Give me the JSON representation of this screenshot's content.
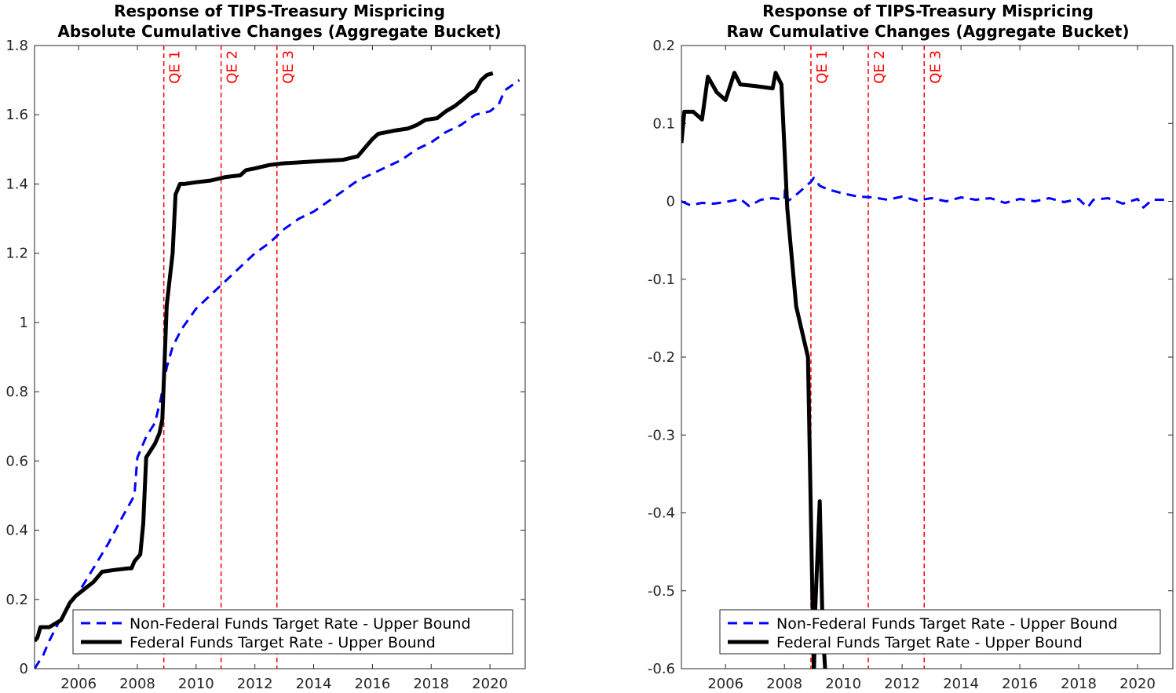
{
  "chart_data": [
    {
      "type": "line",
      "title": [
        "Response of TIPS-Treasury Mispricing",
        "Absolute Cumulative Changes (Aggregate Bucket)"
      ],
      "xlabel": "",
      "ylabel": "",
      "xlim": [
        2004.5,
        2021.2
      ],
      "ylim": [
        0,
        1.8
      ],
      "x_ticks": [
        2006,
        2008,
        2010,
        2012,
        2014,
        2016,
        2018,
        2020
      ],
      "y_ticks": [
        0,
        0.2,
        0.4,
        0.6,
        0.8,
        1,
        1.2,
        1.4,
        1.6,
        1.8
      ],
      "y_tick_labels": [
        "0",
        "0.2",
        "0.4",
        "0.6",
        "0.8",
        "1",
        "1.2",
        "1.4",
        "1.6",
        "1.8"
      ],
      "grid": false,
      "legend_position": "bottom-right",
      "events": [
        {
          "label": "QE 1",
          "x": 2008.9
        },
        {
          "label": "QE 2",
          "x": 2010.85
        },
        {
          "label": "QE 3",
          "x": 2012.75
        }
      ],
      "series": [
        {
          "name": "Non-Federal Funds Target Rate - Upper Bound",
          "color": "#0000ff",
          "style": "dashed",
          "x": [
            2004.5,
            2004.8,
            2005.0,
            2005.3,
            2005.6,
            2006.0,
            2006.5,
            2007.0,
            2007.5,
            2007.9,
            2008.0,
            2008.3,
            2008.6,
            2008.8,
            2009.0,
            2009.2,
            2009.5,
            2010.0,
            2010.5,
            2011.0,
            2011.5,
            2012.0,
            2012.5,
            2013.0,
            2013.5,
            2014.0,
            2014.5,
            2015.0,
            2015.5,
            2016.0,
            2016.5,
            2017.0,
            2017.5,
            2018.0,
            2018.5,
            2019.0,
            2019.5,
            2020.0,
            2020.3,
            2020.5,
            2021.0
          ],
          "values": [
            0.0,
            0.04,
            0.08,
            0.13,
            0.17,
            0.22,
            0.29,
            0.36,
            0.44,
            0.5,
            0.61,
            0.67,
            0.71,
            0.78,
            0.87,
            0.93,
            0.98,
            1.04,
            1.08,
            1.12,
            1.16,
            1.2,
            1.23,
            1.27,
            1.3,
            1.32,
            1.35,
            1.38,
            1.41,
            1.43,
            1.45,
            1.47,
            1.5,
            1.52,
            1.55,
            1.57,
            1.6,
            1.61,
            1.63,
            1.67,
            1.7
          ]
        },
        {
          "name": "Federal Funds Target Rate - Upper Bound",
          "color": "#000000",
          "style": "solid",
          "x": [
            2004.5,
            2004.6,
            2004.7,
            2005.0,
            2005.2,
            2005.4,
            2005.7,
            2005.9,
            2006.2,
            2006.5,
            2006.8,
            2007.2,
            2007.7,
            2007.8,
            2007.9,
            2008.0,
            2008.1,
            2008.2,
            2008.3,
            2008.6,
            2008.75,
            2008.85,
            2009.0,
            2009.2,
            2009.3,
            2009.45,
            2009.6,
            2010.0,
            2010.5,
            2011.0,
            2011.5,
            2011.7,
            2012.0,
            2012.5,
            2013.0,
            2014.0,
            2015.0,
            2015.5,
            2015.7,
            2016.0,
            2016.2,
            2016.5,
            2016.8,
            2017.2,
            2017.5,
            2017.8,
            2018.2,
            2018.5,
            2018.8,
            2019.1,
            2019.3,
            2019.5,
            2019.7,
            2019.9,
            2020.1
          ],
          "values": [
            0.08,
            0.09,
            0.12,
            0.12,
            0.13,
            0.14,
            0.19,
            0.21,
            0.23,
            0.25,
            0.28,
            0.285,
            0.29,
            0.29,
            0.31,
            0.32,
            0.33,
            0.42,
            0.61,
            0.65,
            0.68,
            0.72,
            1.05,
            1.2,
            1.37,
            1.4,
            1.4,
            1.405,
            1.41,
            1.42,
            1.425,
            1.44,
            1.445,
            1.455,
            1.46,
            1.465,
            1.47,
            1.48,
            1.5,
            1.53,
            1.545,
            1.55,
            1.555,
            1.56,
            1.57,
            1.585,
            1.59,
            1.61,
            1.625,
            1.645,
            1.66,
            1.67,
            1.7,
            1.715,
            1.72
          ]
        }
      ]
    },
    {
      "type": "line",
      "title": [
        "Response of TIPS-Treasury Mispricing",
        "Raw Cumulative Changes (Aggregate Bucket)"
      ],
      "xlabel": "",
      "ylabel": "",
      "xlim": [
        2004.5,
        2021.2
      ],
      "ylim": [
        -0.6,
        0.2
      ],
      "x_ticks": [
        2006,
        2008,
        2010,
        2012,
        2014,
        2016,
        2018,
        2020
      ],
      "y_ticks": [
        -0.6,
        -0.5,
        -0.4,
        -0.3,
        -0.2,
        -0.1,
        0,
        0.1,
        0.2
      ],
      "y_tick_labels": [
        "-0.6",
        "-0.5",
        "-0.4",
        "-0.3",
        "-0.2",
        "-0.1",
        "0",
        "0.1",
        "0.2"
      ],
      "grid": false,
      "legend_position": "bottom-right",
      "events": [
        {
          "label": "QE 1",
          "x": 2008.9
        },
        {
          "label": "QE 2",
          "x": 2010.85
        },
        {
          "label": "QE 3",
          "x": 2012.75
        }
      ],
      "series": [
        {
          "name": "Non-Federal Funds Target Rate - Upper Bound",
          "color": "#0000ff",
          "style": "dashed",
          "x": [
            2004.5,
            2004.8,
            2005.2,
            2005.6,
            2006.0,
            2006.5,
            2006.8,
            2007.2,
            2007.6,
            2008.0,
            2008.05,
            2008.1,
            2008.3,
            2008.6,
            2008.9,
            2009.0,
            2009.2,
            2009.5,
            2010.0,
            2010.5,
            2011.0,
            2011.5,
            2012.0,
            2012.5,
            2013.0,
            2013.5,
            2014.0,
            2014.5,
            2015.0,
            2015.5,
            2016.0,
            2016.5,
            2017.0,
            2017.5,
            2018.0,
            2018.3,
            2018.5,
            2019.0,
            2019.5,
            2020.0,
            2020.2,
            2020.5,
            2021.0
          ],
          "values": [
            0.0,
            -0.005,
            -0.002,
            -0.003,
            -0.001,
            0.003,
            -0.006,
            0.002,
            0.004,
            0.002,
            0.035,
            0.0,
            0.005,
            0.015,
            0.025,
            0.03,
            0.02,
            0.015,
            0.01,
            0.006,
            0.005,
            0.002,
            0.006,
            0.001,
            0.004,
            0.0,
            0.005,
            0.002,
            0.004,
            -0.002,
            0.003,
            0.0,
            0.004,
            -0.001,
            0.003,
            -0.008,
            0.002,
            0.004,
            -0.003,
            0.003,
            -0.008,
            0.002,
            0.002
          ]
        },
        {
          "name": "Federal Funds Target Rate - Upper Bound",
          "color": "#000000",
          "style": "solid",
          "x": [
            2004.5,
            2004.6,
            2004.9,
            2005.2,
            2005.4,
            2005.7,
            2006.0,
            2006.3,
            2006.5,
            2007.0,
            2007.6,
            2007.7,
            2007.9,
            2008.1,
            2008.4,
            2008.8,
            2009.0,
            2009.05,
            2009.2,
            2009.3,
            2009.4
          ],
          "values": [
            0.075,
            0.115,
            0.115,
            0.105,
            0.16,
            0.14,
            0.13,
            0.165,
            0.15,
            0.148,
            0.145,
            0.165,
            0.15,
            -0.01,
            -0.135,
            -0.2,
            -0.61,
            -0.52,
            -0.385,
            -0.55,
            -0.61
          ]
        }
      ]
    }
  ]
}
